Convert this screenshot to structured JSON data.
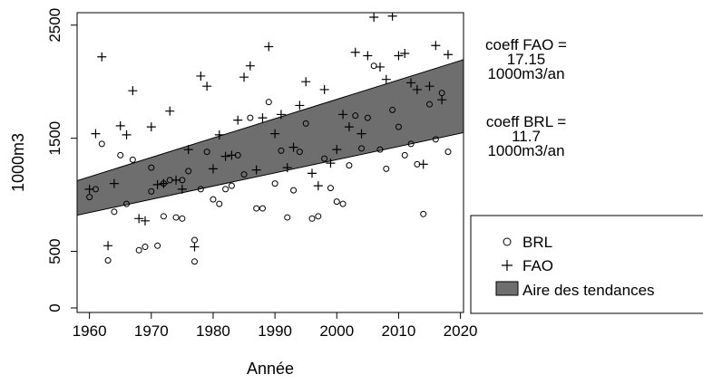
{
  "chart_data": {
    "type": "scatter",
    "xlabel": "Année",
    "ylabel": "1000m3",
    "xlim": [
      1958,
      2020.5
    ],
    "ylim": [
      -40,
      2610
    ],
    "x_ticks": [
      1960,
      1970,
      1980,
      1990,
      2000,
      2010,
      2020
    ],
    "y_ticks": [
      0,
      500,
      1500,
      2500
    ],
    "grid": false,
    "legend": {
      "placement": "bottom-right",
      "entries": [
        {
          "label": "BRL",
          "marker": "circle"
        },
        {
          "label": "FAO",
          "marker": "plus"
        },
        {
          "label": "Aire des tendances",
          "marker": "filled-box"
        }
      ]
    },
    "trend_area": {
      "color": "#6e6e6e",
      "upper": {
        "x": [
          1958,
          2020.5
        ],
        "y": [
          1125,
          2195
        ]
      },
      "lower": {
        "x": [
          1958,
          2020.5
        ],
        "y": [
          820,
          1550
        ]
      }
    },
    "annotations": [
      {
        "lines": [
          "coeff FAO =",
          "17.15",
          "1000m3/an"
        ]
      },
      {
        "lines": [
          "coeff BRL =",
          "11.7",
          "1000m3/an"
        ]
      }
    ],
    "series": [
      {
        "name": "BRL",
        "marker": "circle",
        "points": [
          [
            1960,
            980
          ],
          [
            1961,
            1050
          ],
          [
            1962,
            1450
          ],
          [
            1963,
            420
          ],
          [
            1964,
            850
          ],
          [
            1965,
            1350
          ],
          [
            1966,
            920
          ],
          [
            1967,
            1310
          ],
          [
            1968,
            510
          ],
          [
            1969,
            540
          ],
          [
            1970,
            1030
          ],
          [
            1970,
            1240
          ],
          [
            1971,
            550
          ],
          [
            1972,
            810
          ],
          [
            1972,
            1100
          ],
          [
            1973,
            1130
          ],
          [
            1974,
            800
          ],
          [
            1975,
            790
          ],
          [
            1975,
            1130
          ],
          [
            1976,
            1210
          ],
          [
            1977,
            410
          ],
          [
            1977,
            600
          ],
          [
            1978,
            1050
          ],
          [
            1979,
            1380
          ],
          [
            1980,
            960
          ],
          [
            1981,
            920
          ],
          [
            1982,
            1050
          ],
          [
            1983,
            1080
          ],
          [
            1984,
            1350
          ],
          [
            1985,
            1180
          ],
          [
            1986,
            1680
          ],
          [
            1987,
            880
          ],
          [
            1988,
            880
          ],
          [
            1989,
            1820
          ],
          [
            1990,
            1100
          ],
          [
            1991,
            1390
          ],
          [
            1992,
            800
          ],
          [
            1993,
            1040
          ],
          [
            1994,
            1380
          ],
          [
            1995,
            1630
          ],
          [
            1996,
            790
          ],
          [
            1997,
            810
          ],
          [
            1998,
            1320
          ],
          [
            1999,
            1060
          ],
          [
            2000,
            940
          ],
          [
            2001,
            920
          ],
          [
            2002,
            1260
          ],
          [
            2003,
            1700
          ],
          [
            2004,
            1410
          ],
          [
            2005,
            1680
          ],
          [
            2006,
            2140
          ],
          [
            2007,
            1400
          ],
          [
            2008,
            1230
          ],
          [
            2009,
            1750
          ],
          [
            2010,
            1600
          ],
          [
            2011,
            1350
          ],
          [
            2012,
            1450
          ],
          [
            2013,
            1270
          ],
          [
            2014,
            830
          ],
          [
            2015,
            1800
          ],
          [
            2016,
            1490
          ],
          [
            2017,
            1900
          ],
          [
            2018,
            1380
          ]
        ]
      },
      {
        "name": "FAO",
        "marker": "plus",
        "points": [
          [
            1960,
            1050
          ],
          [
            1961,
            1540
          ],
          [
            1962,
            2220
          ],
          [
            1963,
            550
          ],
          [
            1964,
            1100
          ],
          [
            1965,
            1610
          ],
          [
            1966,
            1530
          ],
          [
            1967,
            1920
          ],
          [
            1968,
            790
          ],
          [
            1969,
            770
          ],
          [
            1970,
            1600
          ],
          [
            1971,
            1090
          ],
          [
            1972,
            1100
          ],
          [
            1973,
            1740
          ],
          [
            1974,
            1130
          ],
          [
            1975,
            1050
          ],
          [
            1976,
            1400
          ],
          [
            1977,
            540
          ],
          [
            1978,
            2050
          ],
          [
            1979,
            1960
          ],
          [
            1980,
            1230
          ],
          [
            1981,
            1530
          ],
          [
            1982,
            1340
          ],
          [
            1983,
            1350
          ],
          [
            1984,
            1660
          ],
          [
            1985,
            2040
          ],
          [
            1986,
            2140
          ],
          [
            1987,
            1220
          ],
          [
            1988,
            1680
          ],
          [
            1989,
            2310
          ],
          [
            1990,
            1540
          ],
          [
            1991,
            1710
          ],
          [
            1992,
            1240
          ],
          [
            1993,
            1420
          ],
          [
            1994,
            1790
          ],
          [
            1995,
            2000
          ],
          [
            1996,
            1190
          ],
          [
            1997,
            1080
          ],
          [
            1998,
            1930
          ],
          [
            1999,
            1280
          ],
          [
            2000,
            1400
          ],
          [
            2001,
            1710
          ],
          [
            2002,
            1600
          ],
          [
            2003,
            2260
          ],
          [
            2004,
            1540
          ],
          [
            2005,
            2230
          ],
          [
            2006,
            2570
          ],
          [
            2007,
            2130
          ],
          [
            2008,
            2020
          ],
          [
            2009,
            2580
          ],
          [
            2010,
            2230
          ],
          [
            2011,
            2250
          ],
          [
            2012,
            1990
          ],
          [
            2013,
            1930
          ],
          [
            2014,
            1270
          ],
          [
            2015,
            1960
          ],
          [
            2016,
            2320
          ],
          [
            2017,
            1840
          ],
          [
            2018,
            2240
          ]
        ]
      }
    ]
  }
}
